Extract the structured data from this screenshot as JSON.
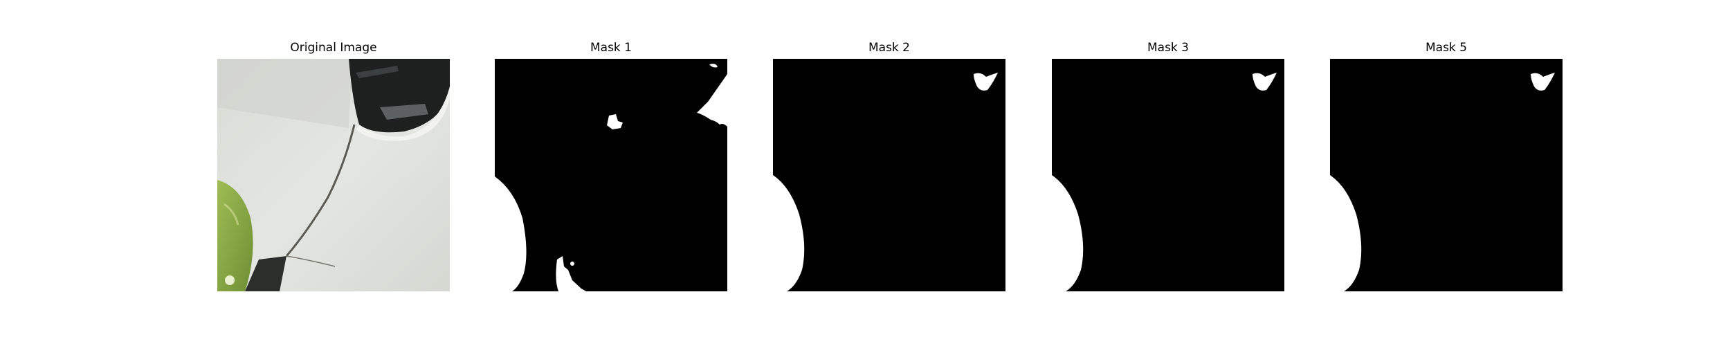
{
  "figure": {
    "panels": [
      {
        "title": "Original Image",
        "kind": "photo"
      },
      {
        "title": "Mask 1",
        "kind": "mask"
      },
      {
        "title": "Mask 2",
        "kind": "mask"
      },
      {
        "title": "Mask 3",
        "kind": "mask"
      },
      {
        "title": "Mask 5",
        "kind": "mask"
      }
    ],
    "colors": {
      "background": "#ffffff",
      "mask_background": "#000000",
      "mask_foreground": "#ffffff",
      "photo_surface": "#e3e5e1",
      "photo_leaf": "#8fae4a"
    }
  }
}
